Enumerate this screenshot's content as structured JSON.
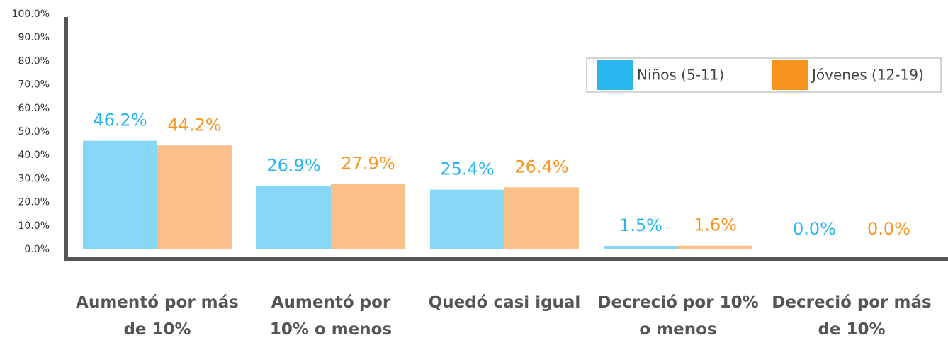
{
  "chart_data": {
    "type": "bar",
    "categories": [
      "Aumentó por más de 10%",
      "Aumentó por 10% o menos",
      "Quedó casi igual",
      "Decreció por 10% o menos",
      "Decreció por más de 10%"
    ],
    "series": [
      {
        "name": "Niños (5-11)",
        "color": "#29b6f0",
        "values": [
          46.2,
          26.9,
          25.4,
          1.5,
          0.0
        ],
        "value_labels": [
          "46.2%",
          "26.9%",
          "25.4%",
          "1.5%",
          "0.0%"
        ]
      },
      {
        "name": "Jóvenes (12-19)",
        "color": "#f7941e",
        "values": [
          44.2,
          27.9,
          26.4,
          1.6,
          0.0
        ],
        "value_labels": [
          "44.2%",
          "27.9%",
          "26.4%",
          "1.6%",
          "0.0%"
        ]
      }
    ],
    "ylim": [
      0,
      100
    ],
    "yticks": [
      {
        "value": 0,
        "label": "0.0%"
      },
      {
        "value": 10,
        "label": "10.0%"
      },
      {
        "value": 20,
        "label": "20.0%"
      },
      {
        "value": 30,
        "label": "30.0%"
      },
      {
        "value": 40,
        "label": "40.0%"
      },
      {
        "value": 50,
        "label": "50.0%"
      },
      {
        "value": 60,
        "label": "60.0%"
      },
      {
        "value": 70,
        "label": "70.0%"
      },
      {
        "value": 80,
        "label": "80.0%"
      },
      {
        "value": 90,
        "label": "90.0%"
      },
      {
        "value": 100,
        "label": "100.0%"
      }
    ],
    "grid": false,
    "legend": "upper right"
  }
}
